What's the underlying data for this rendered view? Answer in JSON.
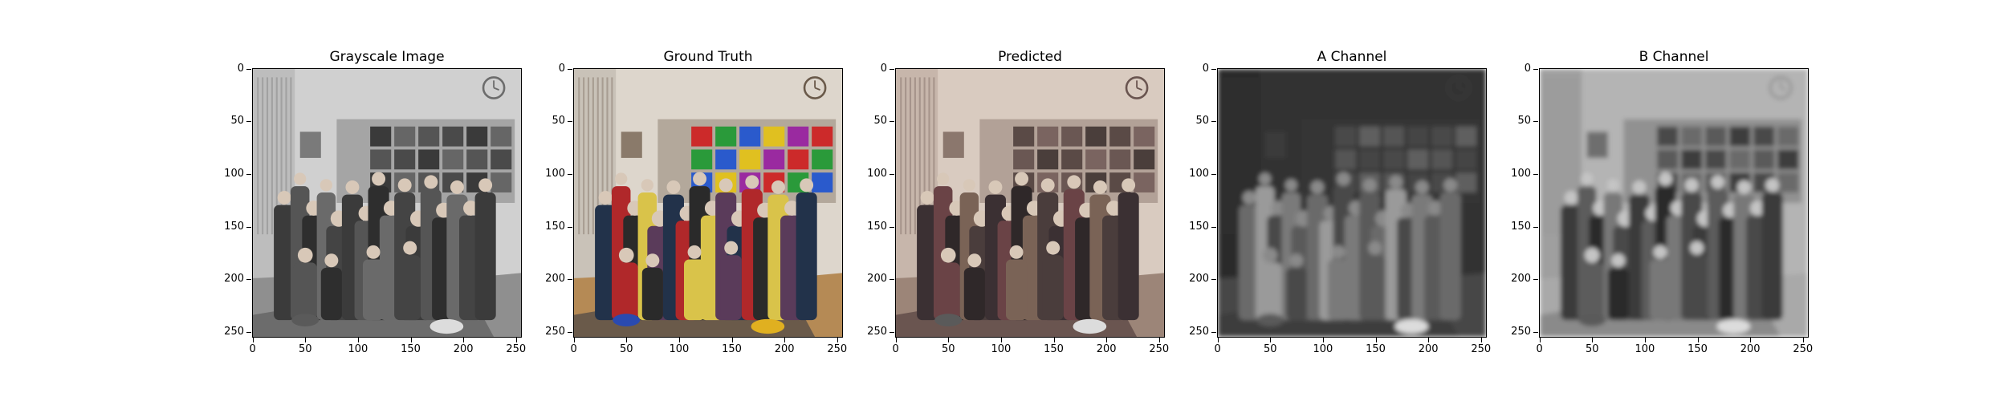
{
  "figure": {
    "panels": [
      {
        "title": "Grayscale Image",
        "kind": "gray"
      },
      {
        "title": "Ground Truth",
        "kind": "color"
      },
      {
        "title": "Predicted",
        "kind": "pred"
      },
      {
        "title": "A Channel",
        "kind": "achan"
      },
      {
        "title": "B Channel",
        "kind": "bchan"
      }
    ],
    "y_ticks": [
      "0",
      "50",
      "100",
      "150",
      "200",
      "250"
    ],
    "x_ticks": [
      "0",
      "50",
      "100",
      "150",
      "200",
      "250"
    ]
  }
}
